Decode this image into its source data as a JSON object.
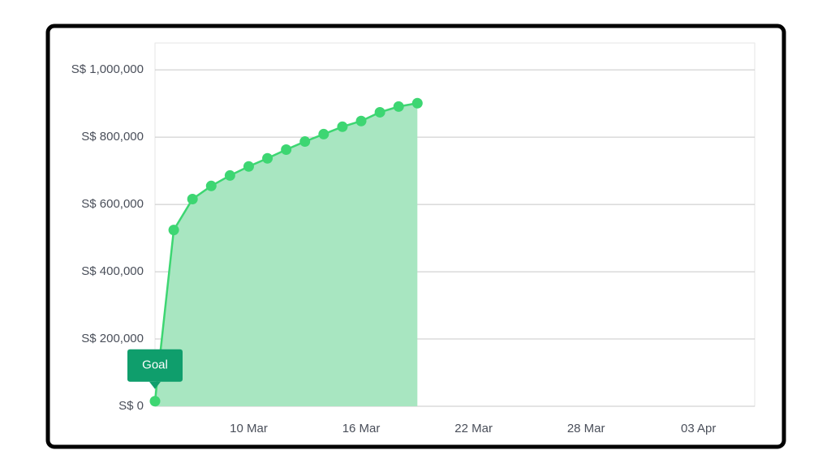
{
  "chart_data": {
    "type": "area",
    "x": [
      "05 Mar",
      "06 Mar",
      "07 Mar",
      "08 Mar",
      "09 Mar",
      "10 Mar",
      "11 Mar",
      "12 Mar",
      "13 Mar",
      "14 Mar",
      "15 Mar",
      "16 Mar",
      "17 Mar",
      "18 Mar",
      "19 Mar"
    ],
    "series": [
      {
        "color": "#3dd672",
        "values": [
          15000,
          524000,
          616000,
          655000,
          686000,
          713000,
          737000,
          763000,
          787000,
          809000,
          831000,
          848000,
          874000,
          891000,
          901000
        ]
      }
    ],
    "annotation": "Goal",
    "xlim": [
      "05 Mar",
      "06 Apr"
    ],
    "xticks": [
      "10 Mar",
      "16 Mar",
      "22 Mar",
      "28 Mar",
      "03 Apr"
    ],
    "ylim": [
      0,
      1080000
    ],
    "yticks": [
      {
        "value": 0,
        "label": "S$ 0"
      },
      {
        "value": 200000,
        "label": "S$ 200,000"
      },
      {
        "value": 400000,
        "label": "S$ 400,000"
      },
      {
        "value": 600000,
        "label": "S$ 600,000"
      },
      {
        "value": 800000,
        "label": "S$ 800,000"
      },
      {
        "value": 1000000,
        "label": "S$ 1,000,000"
      }
    ],
    "grid": true
  }
}
